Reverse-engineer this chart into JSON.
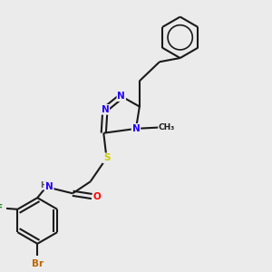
{
  "bg_color": "#ebebeb",
  "bond_color": "#1a1a1a",
  "bond_width": 1.5,
  "atom_colors": {
    "N": "#2200ff",
    "O": "#ff0000",
    "S": "#cccc00",
    "F": "#228822",
    "Br": "#bb6600",
    "H": "#555555",
    "C": "#1a1a1a"
  },
  "font_size": 7.0
}
